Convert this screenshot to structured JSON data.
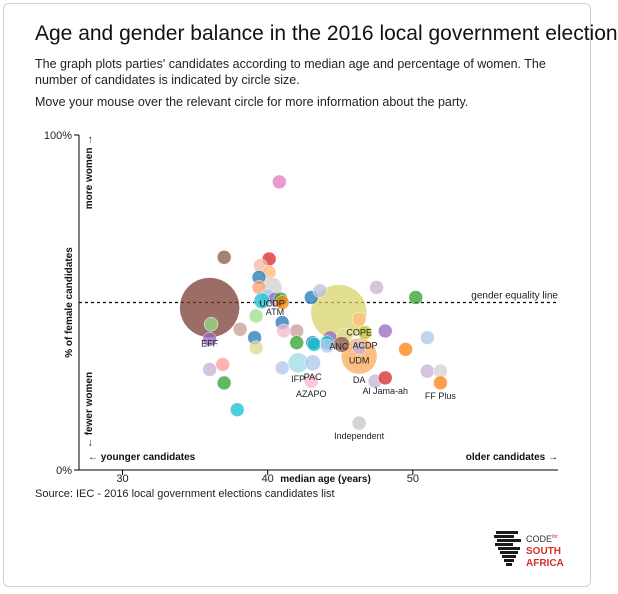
{
  "header": {
    "title": "Age and gender balance in the 2016 local government election",
    "description": "The graph plots parties' candidates according to median age and percentage of women. The number of candidates is indicated by circle size.",
    "hint": "Move your mouse over the relevant circle for more information about the party."
  },
  "source": "Source: IEC - 2016 local government elections candidates list",
  "logo": {
    "line1": "CODE",
    "line1_small": "for",
    "line2": "SOUTH",
    "line3": "AFRICA"
  },
  "chart_data": {
    "type": "scatter",
    "xlabel": "median age (years)",
    "ylabel": "% of female candidates",
    "xlim": [
      27,
      60
    ],
    "ylim": [
      0,
      100
    ],
    "x_ticks": [
      {
        "value": 30,
        "label": "30"
      },
      {
        "value": 40,
        "label": "40"
      },
      {
        "value": 50,
        "label": "50"
      }
    ],
    "y_ticks": [
      {
        "value": 0,
        "label": "0%"
      },
      {
        "value": 100,
        "label": "100%"
      }
    ],
    "reference_line": {
      "value": 50,
      "label": "gender equality line"
    },
    "annotations": {
      "more_women": "more women →",
      "fewer_women": "← fewer women",
      "younger": "← younger candidates",
      "older": "older candidates →"
    },
    "bubble_opacity": 0.75,
    "points": [
      {
        "x": 36.0,
        "y": 48.5,
        "size": 30,
        "color": "#7b3b33",
        "label": "EFF"
      },
      {
        "x": 44.9,
        "y": 47.0,
        "size": 28,
        "color": "#d7d36a",
        "label": "ANC"
      },
      {
        "x": 46.3,
        "y": 34.0,
        "size": 18,
        "color": "#f9a95b",
        "label": "DA"
      },
      {
        "x": 40.8,
        "y": 86.0,
        "size": 7,
        "color": "#e377c2",
        "label": ""
      },
      {
        "x": 37.0,
        "y": 63.5,
        "size": 7,
        "color": "#8c564b",
        "label": ""
      },
      {
        "x": 40.1,
        "y": 63.0,
        "size": 7,
        "color": "#d62728",
        "label": ""
      },
      {
        "x": 39.5,
        "y": 61.0,
        "size": 7,
        "color": "#f7b6a0",
        "label": ""
      },
      {
        "x": 40.1,
        "y": 59.0,
        "size": 7,
        "color": "#ffbb78",
        "label": ""
      },
      {
        "x": 39.4,
        "y": 57.5,
        "size": 7,
        "color": "#1f77b4",
        "label": ""
      },
      {
        "x": 40.3,
        "y": 54.5,
        "size": 10,
        "color": "#d0d0d0",
        "label": "UCDP"
      },
      {
        "x": 39.4,
        "y": 54.5,
        "size": 7,
        "color": "#ff9f6b",
        "label": ""
      },
      {
        "x": 40.0,
        "y": 52.0,
        "size": 7,
        "color": "#aec7e8",
        "label": ""
      },
      {
        "x": 40.5,
        "y": 51.0,
        "size": 7,
        "color": "#9467bd",
        "label": "ATM"
      },
      {
        "x": 40.9,
        "y": 51.0,
        "size": 7,
        "color": "#2ca02c",
        "label": ""
      },
      {
        "x": 39.6,
        "y": 50.5,
        "size": 8,
        "color": "#17becf",
        "label": ""
      },
      {
        "x": 41.0,
        "y": 50.0,
        "size": 7,
        "color": "#ff7f0e",
        "label": ""
      },
      {
        "x": 43.0,
        "y": 51.5,
        "size": 7,
        "color": "#1f77b4",
        "label": ""
      },
      {
        "x": 43.6,
        "y": 53.5,
        "size": 7,
        "color": "#bcbdde",
        "label": ""
      },
      {
        "x": 47.5,
        "y": 54.5,
        "size": 7,
        "color": "#c5b0d5",
        "label": ""
      },
      {
        "x": 50.2,
        "y": 51.5,
        "size": 7,
        "color": "#2ca02c",
        "label": ""
      },
      {
        "x": 39.2,
        "y": 46.0,
        "size": 7,
        "color": "#98df8a",
        "label": ""
      },
      {
        "x": 36.1,
        "y": 43.5,
        "size": 7,
        "color": "#98df8a",
        "label": ""
      },
      {
        "x": 38.1,
        "y": 42.0,
        "size": 7,
        "color": "#c49c94",
        "label": ""
      },
      {
        "x": 36.0,
        "y": 39.0,
        "size": 7,
        "color": "#9467bd",
        "label": ""
      },
      {
        "x": 39.1,
        "y": 39.5,
        "size": 7,
        "color": "#1f77b4",
        "label": ""
      },
      {
        "x": 41.0,
        "y": 44.0,
        "size": 7,
        "color": "#1f77b4",
        "label": ""
      },
      {
        "x": 42.0,
        "y": 41.5,
        "size": 7,
        "color": "#c49c94",
        "label": ""
      },
      {
        "x": 41.1,
        "y": 41.5,
        "size": 7,
        "color": "#f7b6d2",
        "label": ""
      },
      {
        "x": 42.0,
        "y": 38.0,
        "size": 7,
        "color": "#2ca02c",
        "label": ""
      },
      {
        "x": 43.1,
        "y": 38.0,
        "size": 7,
        "color": "#1f77b4",
        "label": ""
      },
      {
        "x": 43.2,
        "y": 37.5,
        "size": 7,
        "color": "#17becf",
        "label": ""
      },
      {
        "x": 44.3,
        "y": 39.5,
        "size": 7,
        "color": "#9467bd",
        "label": ""
      },
      {
        "x": 44.1,
        "y": 38.0,
        "size": 7,
        "color": "#17becf",
        "label": ""
      },
      {
        "x": 44.1,
        "y": 37.0,
        "size": 7,
        "color": "#aec7e8",
        "label": ""
      },
      {
        "x": 45.3,
        "y": 40.0,
        "size": 8,
        "color": "#dbdb8d",
        "label": ""
      },
      {
        "x": 46.3,
        "y": 45.0,
        "size": 7,
        "color": "#ffbb78",
        "label": "COPE"
      },
      {
        "x": 46.7,
        "y": 41.0,
        "size": 7,
        "color": "#bcbd22",
        "label": "ACDP"
      },
      {
        "x": 45.1,
        "y": 37.5,
        "size": 8,
        "color": "#8c564b",
        "label": ""
      },
      {
        "x": 46.3,
        "y": 36.5,
        "size": 7,
        "color": "#c5b0d5",
        "label": "UDM"
      },
      {
        "x": 48.1,
        "y": 41.5,
        "size": 7,
        "color": "#9467bd",
        "label": ""
      },
      {
        "x": 49.5,
        "y": 36.0,
        "size": 7,
        "color": "#ff7f0e",
        "label": ""
      },
      {
        "x": 51.0,
        "y": 39.5,
        "size": 7,
        "color": "#aec7e8",
        "label": ""
      },
      {
        "x": 39.2,
        "y": 36.5,
        "size": 7,
        "color": "#dbdb8d",
        "label": ""
      },
      {
        "x": 36.9,
        "y": 31.5,
        "size": 7,
        "color": "#ff9896",
        "label": ""
      },
      {
        "x": 36.0,
        "y": 30.0,
        "size": 7,
        "color": "#c5b0d5",
        "label": ""
      },
      {
        "x": 37.0,
        "y": 26.0,
        "size": 7,
        "color": "#2ca02c",
        "label": ""
      },
      {
        "x": 41.0,
        "y": 30.5,
        "size": 7,
        "color": "#aec7e8",
        "label": ""
      },
      {
        "x": 42.1,
        "y": 32.0,
        "size": 10,
        "color": "#9edae5",
        "label": "IFP"
      },
      {
        "x": 43.1,
        "y": 32.0,
        "size": 8,
        "color": "#aec7e8",
        "label": "PAC"
      },
      {
        "x": 43.0,
        "y": 26.5,
        "size": 7,
        "color": "#f7b6d2",
        "label": "AZAPO"
      },
      {
        "x": 47.4,
        "y": 26.5,
        "size": 7,
        "color": "#c5b0d5",
        "label": ""
      },
      {
        "x": 48.1,
        "y": 27.5,
        "size": 7,
        "color": "#d62728",
        "label": "Al Jama-ah"
      },
      {
        "x": 51.0,
        "y": 29.5,
        "size": 7,
        "color": "#c5b0d5",
        "label": ""
      },
      {
        "x": 51.9,
        "y": 29.5,
        "size": 7,
        "color": "#d0d0d0",
        "label": ""
      },
      {
        "x": 51.9,
        "y": 26.0,
        "size": 7,
        "color": "#ff7f0e",
        "label": "FF Plus"
      },
      {
        "x": 37.9,
        "y": 18.0,
        "size": 7,
        "color": "#17becf",
        "label": ""
      },
      {
        "x": 46.3,
        "y": 14.0,
        "size": 7,
        "color": "#c7c7c7",
        "label": "Independent"
      }
    ]
  }
}
